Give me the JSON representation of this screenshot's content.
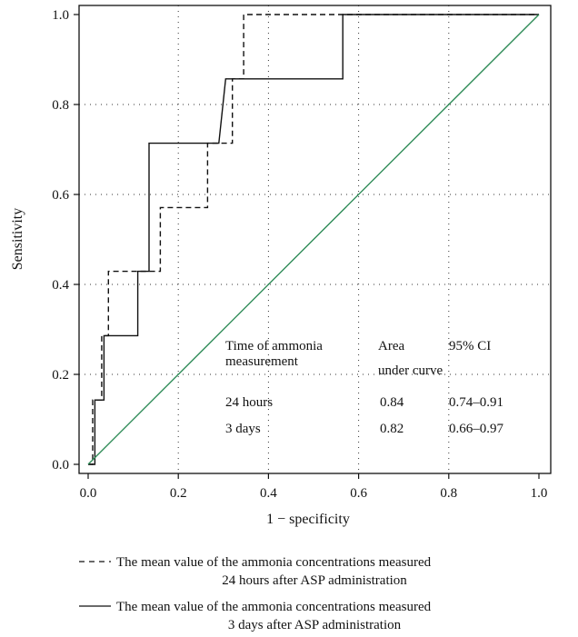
{
  "chart_data": {
    "type": "line",
    "xlabel": "1 − specificity",
    "ylabel": "Sensitivity",
    "xlim": [
      0,
      1
    ],
    "ylim": [
      0,
      1
    ],
    "xticks": [
      0.0,
      0.2,
      0.4,
      0.6,
      0.8,
      1.0
    ],
    "yticks": [
      0.0,
      0.2,
      0.4,
      0.6,
      0.8,
      1.0
    ],
    "xtick_labels": [
      "0.0",
      "0.2",
      "0.4",
      "0.6",
      "0.8",
      "1.0"
    ],
    "ytick_labels": [
      "0.0",
      "0.2",
      "0.4",
      "0.6",
      "0.8",
      "1.0"
    ],
    "grid": true,
    "series": [
      {
        "name": "The mean value of the ammonia concentrations measured 24 hours after ASP administration",
        "style": "dashed",
        "color": "#111111",
        "x": [
          0,
          0.01,
          0.01,
          0.03,
          0.03,
          0.045,
          0.045,
          0.145,
          0.145,
          0.16,
          0.16,
          0.265,
          0.265,
          0.3,
          0.3,
          0.32,
          0.32,
          0.345,
          0.345,
          1.0
        ],
        "y": [
          0,
          0,
          0.143,
          0.143,
          0.286,
          0.286,
          0.429,
          0.429,
          0.429,
          0.429,
          0.571,
          0.571,
          0.714,
          0.714,
          0.714,
          0.714,
          0.857,
          0.857,
          1.0,
          1.0
        ]
      },
      {
        "name": "The mean value of the ammonia concentrations measured 3 days after ASP administration",
        "style": "solid",
        "color": "#111111",
        "x": [
          0,
          0.015,
          0.015,
          0.035,
          0.035,
          0.11,
          0.11,
          0.135,
          0.135,
          0.29,
          0.29,
          0.305,
          0.305,
          0.565,
          0.565,
          1.0
        ],
        "y": [
          0,
          0,
          0.143,
          0.143,
          0.286,
          0.286,
          0.429,
          0.429,
          0.714,
          0.714,
          0.714,
          0.857,
          0.857,
          0.857,
          1.0,
          1.0
        ]
      },
      {
        "style": "solid",
        "color": "#2e8b57",
        "x": [
          0,
          1
        ],
        "y": [
          0,
          1
        ]
      }
    ],
    "annotation": {
      "header": [
        "Time of ammonia",
        "measurement",
        "Area",
        "under curve",
        "95% CI"
      ],
      "rows": [
        {
          "label": "24 hours",
          "auc": "0.84",
          "ci": "0.74–0.91"
        },
        {
          "label": "3 days",
          "auc": "0.82",
          "ci": "0.66–0.97"
        }
      ]
    },
    "legend": [
      {
        "style": "dashed",
        "line1": "The mean value of the ammonia concentrations measured",
        "line2": "24 hours after ASP administration"
      },
      {
        "style": "solid",
        "line1": "The mean value of the ammonia concentrations measured",
        "line2": "3 days after ASP administration"
      }
    ],
    "legend_position": "below"
  }
}
